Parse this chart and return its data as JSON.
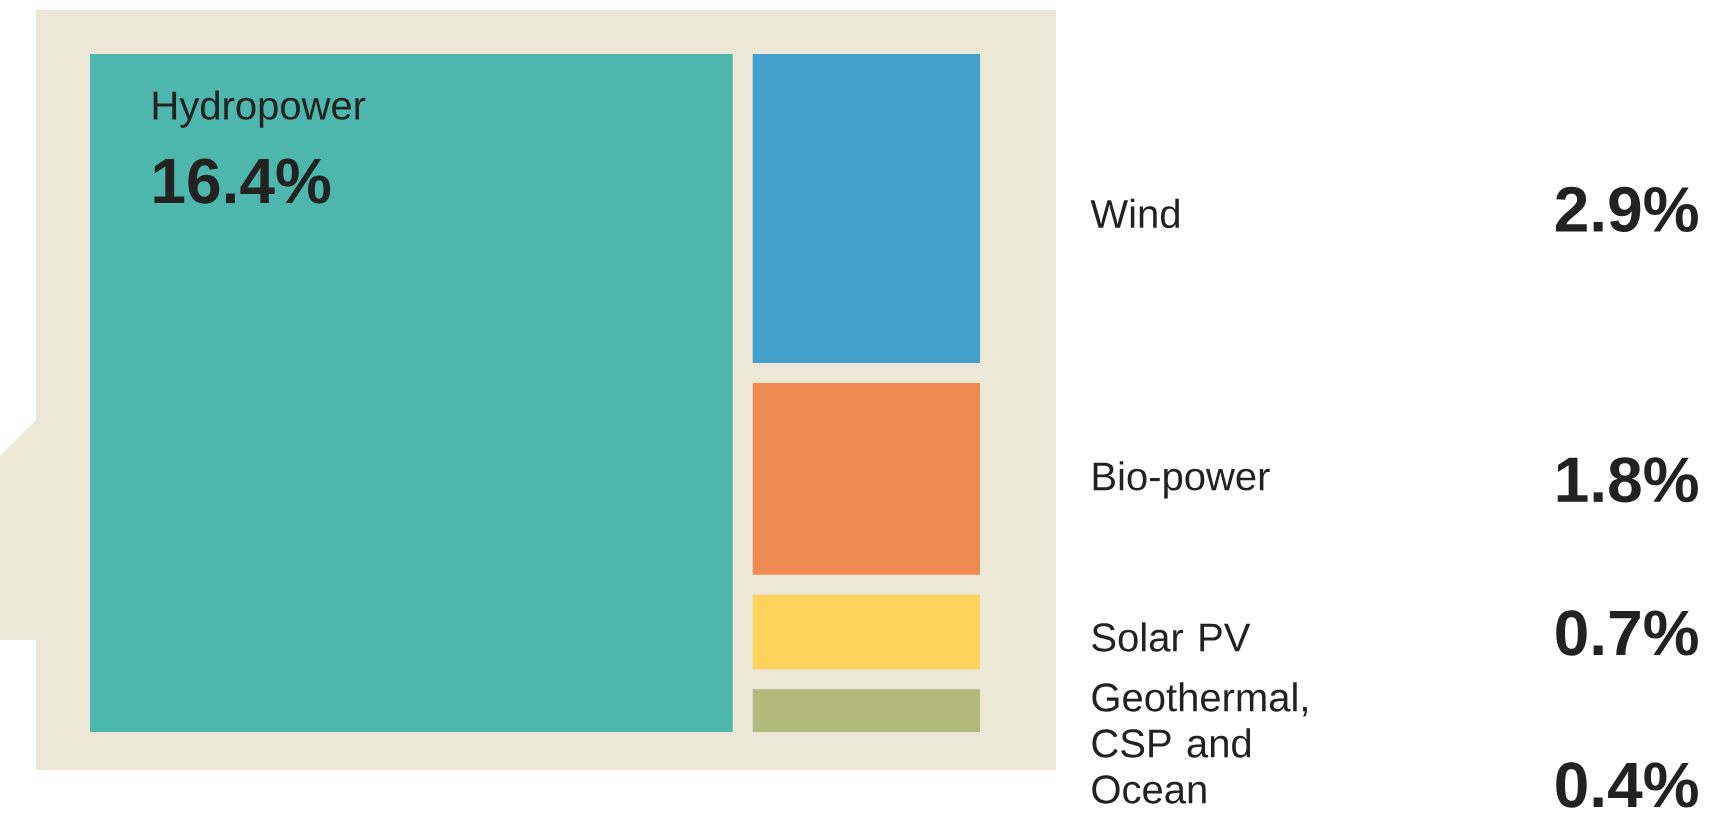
{
  "chart_data": {
    "type": "other",
    "categories": [
      "Hydropower",
      "Wind",
      "Bio-power",
      "Solar PV",
      "Geothermal, CSP and Ocean"
    ],
    "values": [
      16.4,
      2.9,
      1.8,
      0.7,
      0.4
    ],
    "value_labels": [
      "16.4%",
      "2.9%",
      "1.8%",
      "0.7%",
      "0.4%"
    ],
    "colors": [
      "#4db6ad",
      "#43a0cc",
      "#ef8a50",
      "#fdd35c",
      "#b1b97b"
    ]
  }
}
